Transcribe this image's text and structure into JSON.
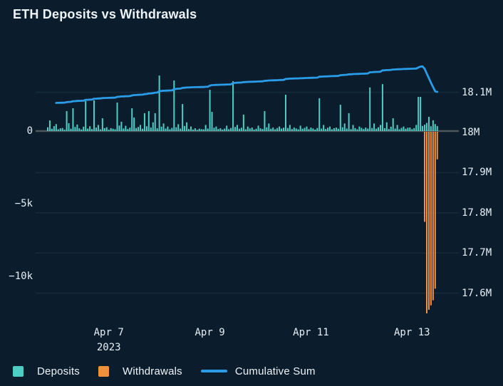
{
  "title": "ETH Deposits vs Withdrawals",
  "colors": {
    "background": "#0b1d2d",
    "deposits": "#4ecdc4",
    "withdrawals": "#f0923c",
    "cumulative": "#2b9ce8",
    "grid": "#152a3c",
    "zero_line": "#50565c",
    "text": "#e7eef4",
    "title_text": "#eef3f7"
  },
  "legend": {
    "items": [
      {
        "label": "Deposits",
        "color": "#4ecdc4",
        "swatch": "square"
      },
      {
        "label": "Withdrawals",
        "color": "#f0923c",
        "swatch": "square"
      },
      {
        "label": "Cumulative Sum",
        "color": "#2b9ce8",
        "swatch": "line"
      }
    ]
  },
  "chart_data": {
    "type": "combo-bar-line",
    "title": "ETH Deposits vs Withdrawals",
    "x_unit": "hourly points, Apr 6 - Apr 13 2023",
    "grid": "horizontal, subtle",
    "legend_position": "bottom-left",
    "x_ticks": [
      {
        "index": 29,
        "label": "Apr 7",
        "sublabel": "2023"
      },
      {
        "index": 77,
        "label": "Apr 9"
      },
      {
        "index": 125,
        "label": "Apr 11"
      },
      {
        "index": 173,
        "label": "Apr 13"
      }
    ],
    "left_axis": {
      "side": "left",
      "applies_to": "bars",
      "ticks": [
        {
          "value": 0,
          "label": "0"
        },
        {
          "value": -5000,
          "label": "−5k"
        },
        {
          "value": -10000,
          "label": "−10k"
        }
      ]
    },
    "right_axis": {
      "side": "right",
      "applies_to": "cumulative line",
      "ticks": [
        {
          "value": 18.1,
          "label": "18.1M"
        },
        {
          "value": 18.0,
          "label": "18M"
        },
        {
          "value": 17.9,
          "label": "17.9M"
        },
        {
          "value": 17.8,
          "label": "17.8M"
        },
        {
          "value": 17.7,
          "label": "17.7M"
        },
        {
          "value": 17.6,
          "label": "17.6M"
        }
      ]
    },
    "series": [
      {
        "name": "Deposits",
        "type": "bar",
        "color": "#4ecdc4",
        "values": [
          260,
          730,
          160,
          340,
          480,
          120,
          190,
          210,
          90,
          1370,
          540,
          160,
          1570,
          280,
          450,
          190,
          110,
          300,
          2060,
          170,
          330,
          140,
          2110,
          240,
          420,
          120,
          880,
          200,
          260,
          90,
          200,
          160,
          120,
          1960,
          380,
          640,
          180,
          360,
          140,
          230,
          1570,
          930,
          210,
          280,
          420,
          160,
          1230,
          330,
          1370,
          240,
          600,
          1230,
          190,
          3820,
          300,
          520,
          170,
          310,
          120,
          220,
          3480,
          260,
          470,
          170,
          1860,
          350,
          600,
          140,
          310,
          100,
          190,
          80,
          160,
          130,
          120,
          420,
          170,
          2840,
          1320,
          230,
          310,
          140,
          190,
          100,
          170,
          370,
          130,
          210,
          3430,
          280,
          420,
          160,
          230,
          1130,
          120,
          310,
          180,
          240,
          100,
          160,
          370,
          190,
          140,
          1370,
          260,
          520,
          160,
          240,
          120,
          210,
          310,
          170,
          230,
          2500,
          210,
          420,
          140,
          240,
          180,
          120,
          370,
          160,
          220,
          310,
          130,
          240,
          180,
          100,
          210,
          2260,
          170,
          420,
          140,
          230,
          310,
          120,
          200,
          240,
          160,
          1810,
          260,
          520,
          170,
          1230,
          130,
          420,
          200,
          120,
          310,
          220,
          140,
          240,
          170,
          3000,
          210,
          520,
          160,
          260,
          420,
          3230,
          200,
          600,
          140,
          300,
          880,
          170,
          420,
          120,
          220,
          310,
          160,
          230,
          240,
          130,
          200,
          420,
          2350,
          2350,
          350,
          440,
          560,
          980,
          330,
          740,
          480,
          340
        ]
      },
      {
        "name": "Withdrawals",
        "type": "bar",
        "color": "#f0923c",
        "note": "sparse; all other points are 0",
        "events": [
          {
            "index": 179,
            "value": -6200
          },
          {
            "index": 180,
            "value": -12500
          },
          {
            "index": 181,
            "value": -12250
          },
          {
            "index": 182,
            "value": -11950
          },
          {
            "index": 183,
            "value": -11600
          },
          {
            "index": 184,
            "value": -10800
          },
          {
            "index": 185,
            "value": -1900
          }
        ]
      },
      {
        "name": "Cumulative Sum",
        "type": "line",
        "color": "#2b9ce8",
        "start_value": 18071600,
        "derivation": "start_value + running sum of (deposits + withdrawals); peaks ~18.165M then falls to ~18.10M"
      }
    ]
  }
}
